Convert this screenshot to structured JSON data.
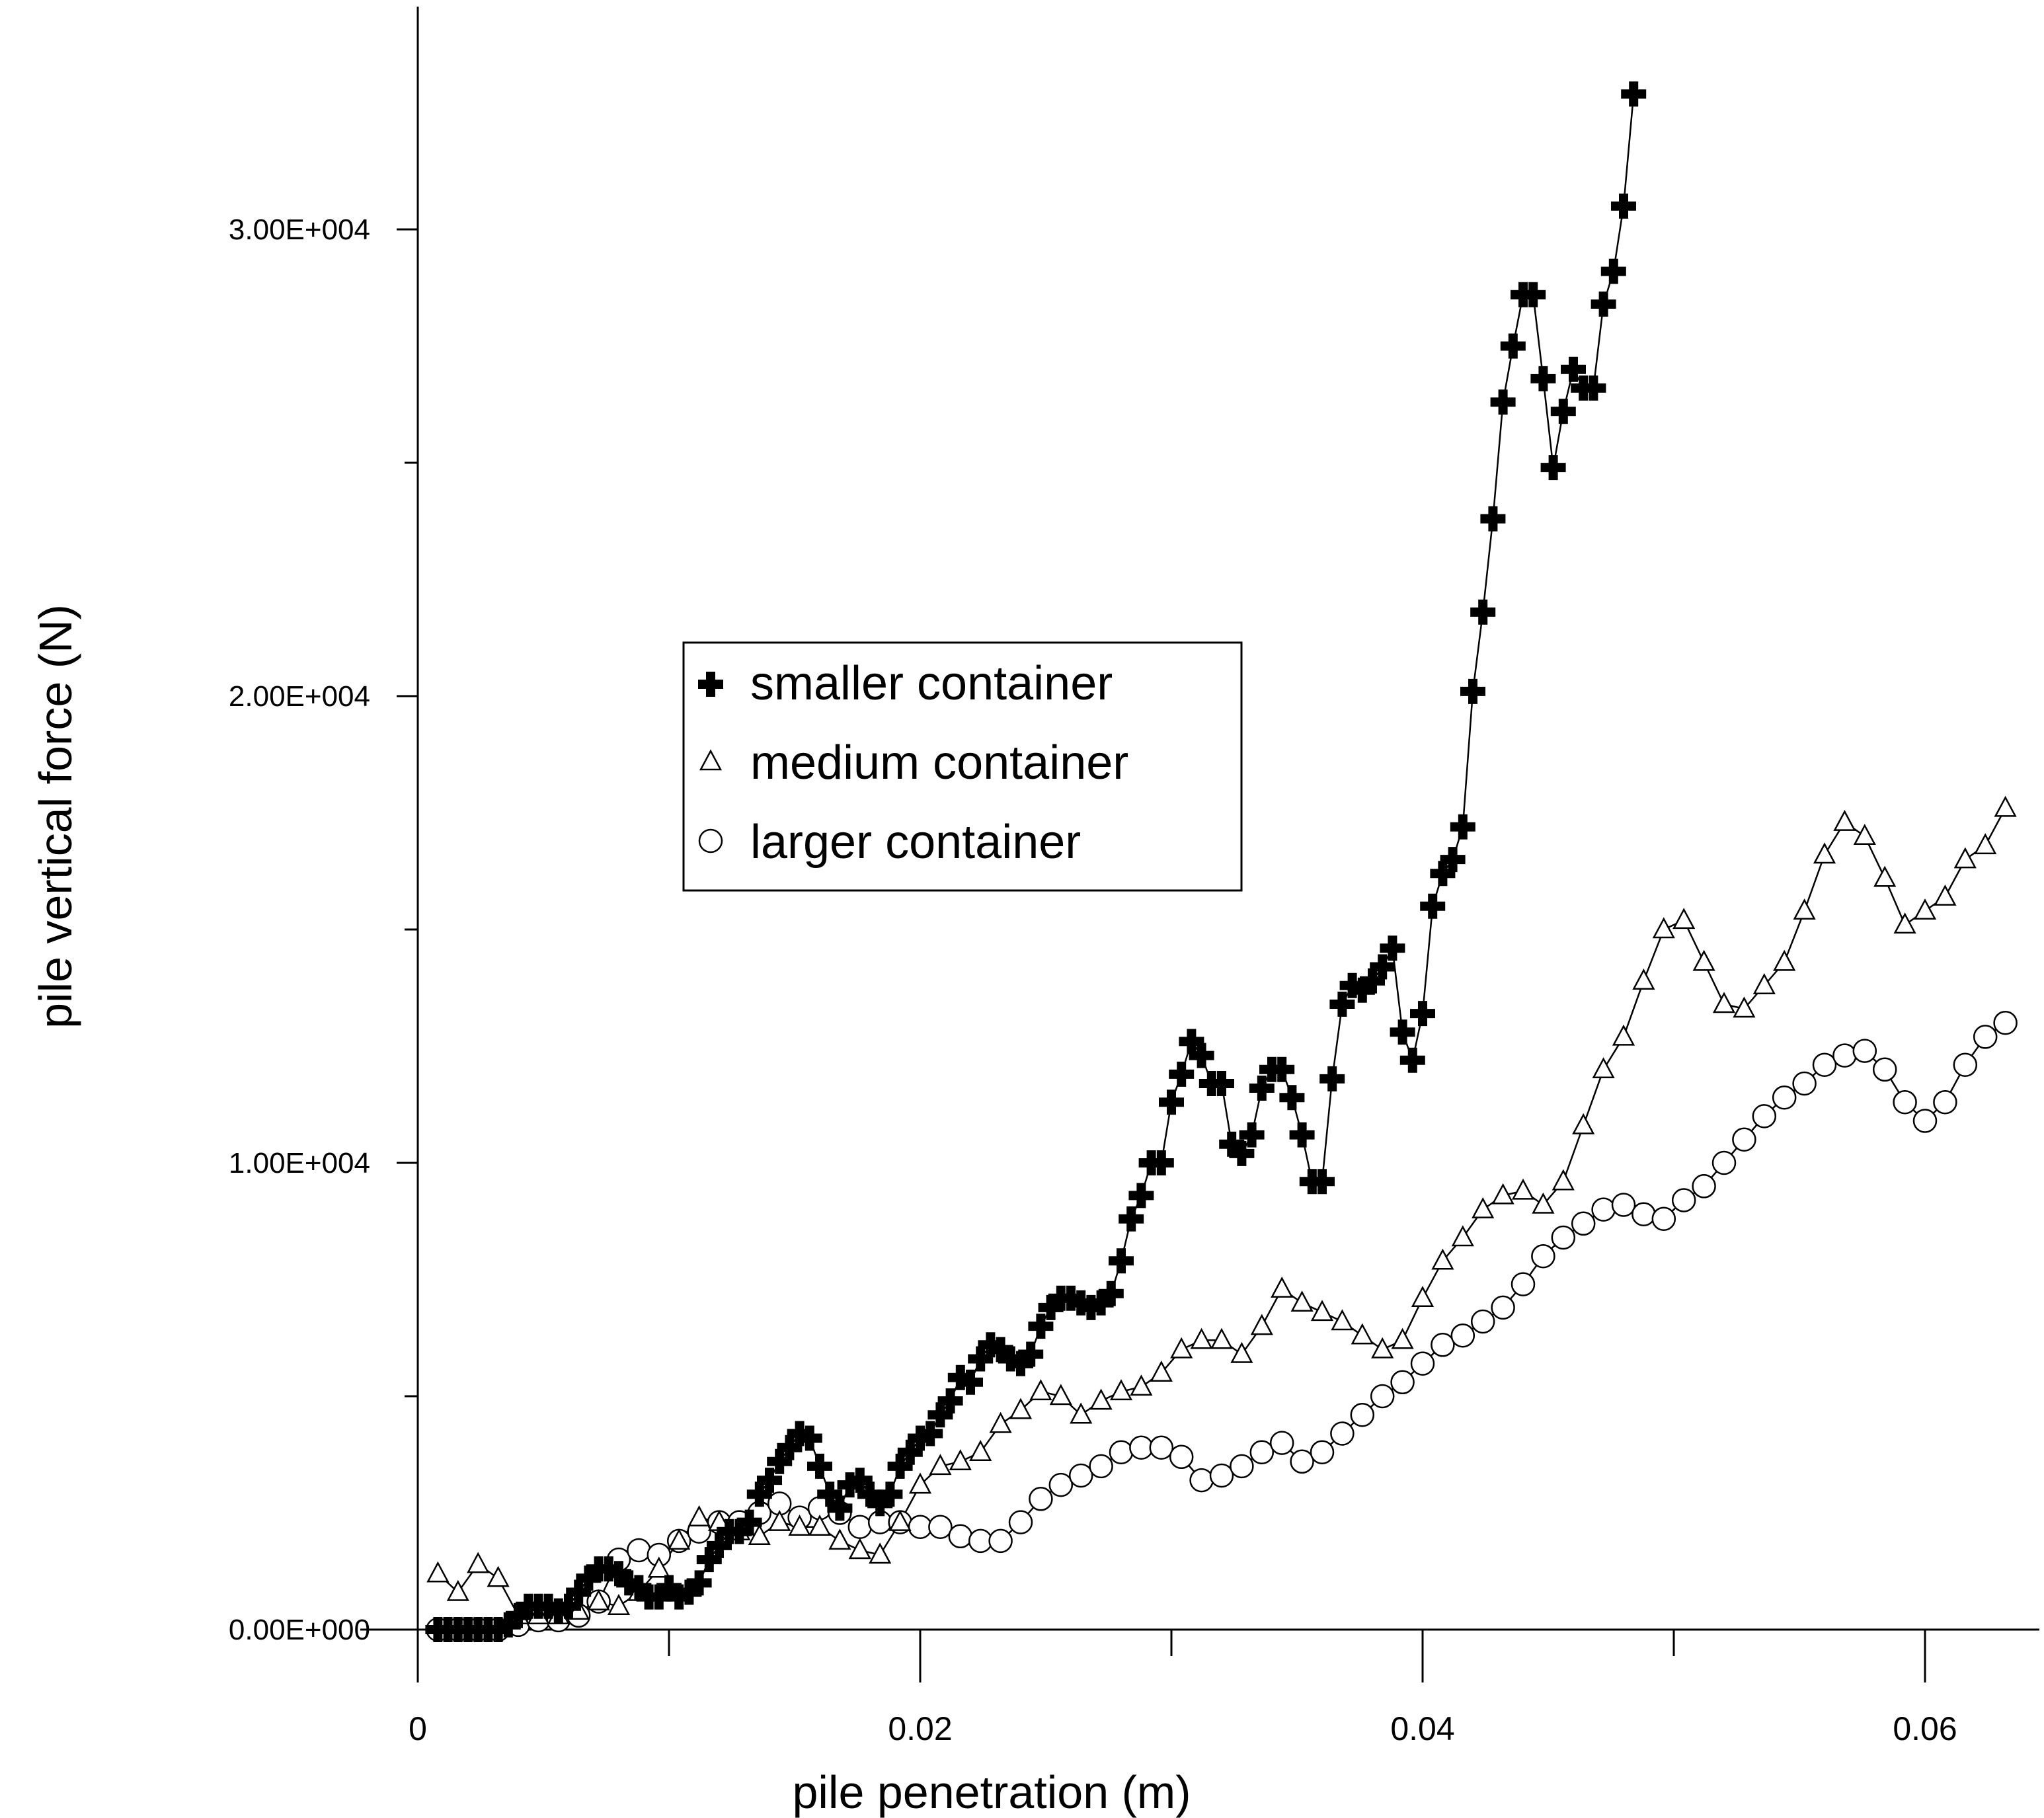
{
  "chart_data": {
    "type": "scatter",
    "title": "",
    "xlabel": "pile penetration (m)",
    "ylabel": "pile vertical force (N)",
    "xlim": [
      0,
      0.065
    ],
    "ylim": [
      -1000,
      34000
    ],
    "x_ticks": [
      0,
      0.02,
      0.04,
      0.06
    ],
    "x_tick_labels": [
      "0",
      "0.02",
      "0.04",
      "0.06"
    ],
    "y_ticks": [
      0,
      10000,
      20000,
      30000
    ],
    "y_tick_labels": [
      "0.00E+000",
      "1.00E+004",
      "2.00E+004",
      "3.00E+004"
    ],
    "grid": false,
    "legend_position": "center-left",
    "series": [
      {
        "name": "smaller container",
        "marker": "plus",
        "color": "#000000",
        "points": [
          [
            0.0008,
            0
          ],
          [
            0.0012,
            0
          ],
          [
            0.0016,
            0
          ],
          [
            0.002,
            0
          ],
          [
            0.0024,
            0
          ],
          [
            0.0028,
            0
          ],
          [
            0.0032,
            0
          ],
          [
            0.0036,
            100
          ],
          [
            0.004,
            300
          ],
          [
            0.0044,
            500
          ],
          [
            0.0048,
            500
          ],
          [
            0.0052,
            500
          ],
          [
            0.0056,
            400
          ],
          [
            0.006,
            500
          ],
          [
            0.0064,
            800
          ],
          [
            0.0068,
            1100
          ],
          [
            0.0072,
            1300
          ],
          [
            0.0076,
            1300
          ],
          [
            0.008,
            1200
          ],
          [
            0.0084,
            1000
          ],
          [
            0.0088,
            900
          ],
          [
            0.0092,
            700
          ],
          [
            0.0096,
            700
          ],
          [
            0.01,
            900
          ],
          [
            0.0104,
            700
          ],
          [
            0.0108,
            800
          ],
          [
            0.0112,
            1000
          ],
          [
            0.0116,
            1500
          ],
          [
            0.012,
            1800
          ],
          [
            0.0124,
            2100
          ],
          [
            0.0128,
            2100
          ],
          [
            0.0132,
            2300
          ],
          [
            0.0136,
            2900
          ],
          [
            0.014,
            3200
          ],
          [
            0.0144,
            3600
          ],
          [
            0.0148,
            3900
          ],
          [
            0.0152,
            4200
          ],
          [
            0.0156,
            4100
          ],
          [
            0.016,
            3500
          ],
          [
            0.0164,
            2900
          ],
          [
            0.0168,
            2600
          ],
          [
            0.0172,
            3100
          ],
          [
            0.0176,
            3200
          ],
          [
            0.018,
            2900
          ],
          [
            0.0184,
            2700
          ],
          [
            0.0188,
            2900
          ],
          [
            0.0192,
            3500
          ],
          [
            0.0196,
            3800
          ],
          [
            0.02,
            4100
          ],
          [
            0.0204,
            4200
          ],
          [
            0.0208,
            4600
          ],
          [
            0.0212,
            4900
          ],
          [
            0.0216,
            5400
          ],
          [
            0.022,
            5300
          ],
          [
            0.0224,
            5800
          ],
          [
            0.0228,
            6100
          ],
          [
            0.0232,
            6000
          ],
          [
            0.0236,
            5800
          ],
          [
            0.024,
            5700
          ],
          [
            0.0244,
            5900
          ],
          [
            0.0248,
            6500
          ],
          [
            0.0252,
            6900
          ],
          [
            0.0256,
            7100
          ],
          [
            0.026,
            7100
          ],
          [
            0.0264,
            7000
          ],
          [
            0.0268,
            6900
          ],
          [
            0.0272,
            7000
          ],
          [
            0.0276,
            7200
          ],
          [
            0.028,
            7900
          ],
          [
            0.0284,
            8800
          ],
          [
            0.0288,
            9300
          ],
          [
            0.0292,
            10000
          ],
          [
            0.0296,
            10000
          ],
          [
            0.03,
            11300
          ],
          [
            0.0304,
            11900
          ],
          [
            0.0308,
            12600
          ],
          [
            0.0312,
            12300
          ],
          [
            0.0316,
            11700
          ],
          [
            0.032,
            11700
          ],
          [
            0.0324,
            10400
          ],
          [
            0.0328,
            10200
          ],
          [
            0.0332,
            10600
          ],
          [
            0.0336,
            11600
          ],
          [
            0.034,
            12000
          ],
          [
            0.0344,
            12000
          ],
          [
            0.0348,
            11400
          ],
          [
            0.0352,
            10600
          ],
          [
            0.0356,
            9600
          ],
          [
            0.036,
            9600
          ],
          [
            0.0364,
            11800
          ],
          [
            0.0368,
            13400
          ],
          [
            0.0372,
            13800
          ],
          [
            0.0376,
            13700
          ],
          [
            0.038,
            13900
          ],
          [
            0.0384,
            14200
          ],
          [
            0.0388,
            14600
          ],
          [
            0.0392,
            12800
          ],
          [
            0.0396,
            12200
          ],
          [
            0.04,
            13200
          ],
          [
            0.0404,
            15500
          ],
          [
            0.0408,
            16200
          ],
          [
            0.0412,
            16500
          ],
          [
            0.0416,
            17200
          ],
          [
            0.042,
            20100
          ],
          [
            0.0424,
            21800
          ],
          [
            0.0428,
            23800
          ],
          [
            0.0432,
            26300
          ],
          [
            0.0436,
            27500
          ],
          [
            0.044,
            28600
          ],
          [
            0.0444,
            28600
          ],
          [
            0.0448,
            26800
          ],
          [
            0.0452,
            24900
          ],
          [
            0.0456,
            26100
          ],
          [
            0.046,
            27000
          ],
          [
            0.0464,
            26600
          ],
          [
            0.0468,
            26600
          ],
          [
            0.0472,
            28400
          ],
          [
            0.0476,
            29100
          ],
          [
            0.048,
            30500
          ],
          [
            0.0484,
            32900
          ]
        ]
      },
      {
        "name": "medium container",
        "marker": "triangle",
        "color": "#000000",
        "points": [
          [
            0.0008,
            1200
          ],
          [
            0.0016,
            800
          ],
          [
            0.0024,
            1400
          ],
          [
            0.0032,
            1100
          ],
          [
            0.004,
            300
          ],
          [
            0.0048,
            300
          ],
          [
            0.0056,
            300
          ],
          [
            0.0064,
            400
          ],
          [
            0.0072,
            600
          ],
          [
            0.008,
            500
          ],
          [
            0.0088,
            800
          ],
          [
            0.0096,
            1300
          ],
          [
            0.0104,
            1900
          ],
          [
            0.0112,
            2400
          ],
          [
            0.012,
            2300
          ],
          [
            0.0128,
            2100
          ],
          [
            0.0136,
            2000
          ],
          [
            0.0144,
            2300
          ],
          [
            0.0152,
            2200
          ],
          [
            0.016,
            2200
          ],
          [
            0.0168,
            1900
          ],
          [
            0.0176,
            1700
          ],
          [
            0.0184,
            1600
          ],
          [
            0.0192,
            2300
          ],
          [
            0.02,
            3100
          ],
          [
            0.0208,
            3500
          ],
          [
            0.0216,
            3600
          ],
          [
            0.0224,
            3800
          ],
          [
            0.0232,
            4400
          ],
          [
            0.024,
            4700
          ],
          [
            0.0248,
            5100
          ],
          [
            0.0256,
            5000
          ],
          [
            0.0264,
            4600
          ],
          [
            0.0272,
            4900
          ],
          [
            0.028,
            5100
          ],
          [
            0.0288,
            5200
          ],
          [
            0.0296,
            5500
          ],
          [
            0.0304,
            6000
          ],
          [
            0.0312,
            6200
          ],
          [
            0.032,
            6200
          ],
          [
            0.0328,
            5900
          ],
          [
            0.0336,
            6500
          ],
          [
            0.0344,
            7300
          ],
          [
            0.0352,
            7000
          ],
          [
            0.036,
            6800
          ],
          [
            0.0368,
            6600
          ],
          [
            0.0376,
            6300
          ],
          [
            0.0384,
            6000
          ],
          [
            0.0392,
            6200
          ],
          [
            0.04,
            7100
          ],
          [
            0.0408,
            7900
          ],
          [
            0.0416,
            8400
          ],
          [
            0.0424,
            9000
          ],
          [
            0.0432,
            9300
          ],
          [
            0.044,
            9400
          ],
          [
            0.0448,
            9100
          ],
          [
            0.0456,
            9600
          ],
          [
            0.0464,
            10800
          ],
          [
            0.0472,
            12000
          ],
          [
            0.048,
            12700
          ],
          [
            0.0488,
            13900
          ],
          [
            0.0496,
            15000
          ],
          [
            0.0504,
            15200
          ],
          [
            0.0512,
            14300
          ],
          [
            0.052,
            13400
          ],
          [
            0.0528,
            13300
          ],
          [
            0.0536,
            13800
          ],
          [
            0.0544,
            14300
          ],
          [
            0.0552,
            15400
          ],
          [
            0.056,
            16600
          ],
          [
            0.0568,
            17300
          ],
          [
            0.0576,
            17000
          ],
          [
            0.0584,
            16100
          ],
          [
            0.0592,
            15100
          ],
          [
            0.06,
            15400
          ],
          [
            0.0608,
            15700
          ],
          [
            0.0616,
            16500
          ],
          [
            0.0624,
            16800
          ],
          [
            0.0632,
            17600
          ]
        ]
      },
      {
        "name": "larger container",
        "marker": "circle",
        "color": "#000000",
        "points": [
          [
            0.0008,
            0
          ],
          [
            0.0016,
            0
          ],
          [
            0.0024,
            0
          ],
          [
            0.0032,
            0
          ],
          [
            0.004,
            100
          ],
          [
            0.0048,
            200
          ],
          [
            0.0056,
            200
          ],
          [
            0.0064,
            300
          ],
          [
            0.0072,
            600
          ],
          [
            0.008,
            1500
          ],
          [
            0.0088,
            1700
          ],
          [
            0.0096,
            1600
          ],
          [
            0.0104,
            1900
          ],
          [
            0.0112,
            2100
          ],
          [
            0.012,
            2300
          ],
          [
            0.0128,
            2300
          ],
          [
            0.0136,
            2500
          ],
          [
            0.0144,
            2700
          ],
          [
            0.0152,
            2400
          ],
          [
            0.016,
            2600
          ],
          [
            0.0168,
            2500
          ],
          [
            0.0176,
            2200
          ],
          [
            0.0184,
            2300
          ],
          [
            0.0192,
            2300
          ],
          [
            0.02,
            2200
          ],
          [
            0.0208,
            2200
          ],
          [
            0.0216,
            2000
          ],
          [
            0.0224,
            1900
          ],
          [
            0.0232,
            1900
          ],
          [
            0.024,
            2300
          ],
          [
            0.0248,
            2800
          ],
          [
            0.0256,
            3100
          ],
          [
            0.0264,
            3300
          ],
          [
            0.0272,
            3500
          ],
          [
            0.028,
            3800
          ],
          [
            0.0288,
            3900
          ],
          [
            0.0296,
            3900
          ],
          [
            0.0304,
            3700
          ],
          [
            0.0312,
            3200
          ],
          [
            0.032,
            3300
          ],
          [
            0.0328,
            3500
          ],
          [
            0.0336,
            3800
          ],
          [
            0.0344,
            4000
          ],
          [
            0.0352,
            3600
          ],
          [
            0.036,
            3800
          ],
          [
            0.0368,
            4200
          ],
          [
            0.0376,
            4600
          ],
          [
            0.0384,
            5000
          ],
          [
            0.0392,
            5300
          ],
          [
            0.04,
            5700
          ],
          [
            0.0408,
            6100
          ],
          [
            0.0416,
            6300
          ],
          [
            0.0424,
            6600
          ],
          [
            0.0432,
            6900
          ],
          [
            0.044,
            7400
          ],
          [
            0.0448,
            8000
          ],
          [
            0.0456,
            8400
          ],
          [
            0.0464,
            8700
          ],
          [
            0.0472,
            9000
          ],
          [
            0.048,
            9100
          ],
          [
            0.0488,
            8900
          ],
          [
            0.0496,
            8800
          ],
          [
            0.0504,
            9200
          ],
          [
            0.0512,
            9500
          ],
          [
            0.052,
            10000
          ],
          [
            0.0528,
            10500
          ],
          [
            0.0536,
            11000
          ],
          [
            0.0544,
            11400
          ],
          [
            0.0552,
            11700
          ],
          [
            0.056,
            12100
          ],
          [
            0.0568,
            12300
          ],
          [
            0.0576,
            12400
          ],
          [
            0.0584,
            12000
          ],
          [
            0.0592,
            11300
          ],
          [
            0.06,
            10900
          ],
          [
            0.0608,
            11300
          ],
          [
            0.0616,
            12100
          ],
          [
            0.0624,
            12700
          ],
          [
            0.0632,
            13000
          ]
        ]
      }
    ]
  }
}
